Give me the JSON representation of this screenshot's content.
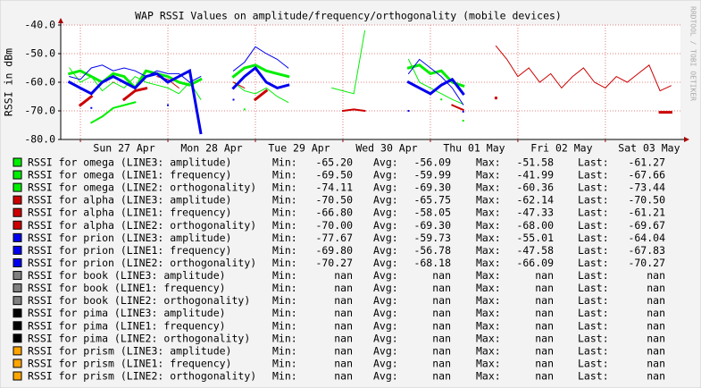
{
  "chart_data": {
    "type": "line",
    "title": "WAP RSSI Values on amplitude/frequency/orthogonality (mobile devices)",
    "y_label": "RSSI in dBm",
    "watermark": "RRDTOOL / TOBI OETIKER",
    "x": [
      -3,
      0,
      3,
      6,
      9,
      12,
      15,
      18,
      21,
      24,
      27,
      30,
      33,
      36,
      39,
      42,
      45,
      48,
      51,
      54,
      57,
      60,
      63,
      66,
      69,
      72,
      75,
      78,
      81,
      84,
      87,
      90,
      93,
      96,
      99,
      102,
      105,
      108,
      111,
      114,
      117,
      120,
      123,
      126,
      129,
      132,
      135,
      138,
      141,
      144,
      147,
      150,
      153,
      156,
      159,
      162
    ],
    "xlim": [
      -5.4,
      164.6
    ],
    "xticks": [
      {
        "value": 12,
        "label": "Sun 27 Apr"
      },
      {
        "value": 36,
        "label": "Mon 28 Apr"
      },
      {
        "value": 60,
        "label": "Tue 29 Apr"
      },
      {
        "value": 84,
        "label": "Wed 30 Apr"
      },
      {
        "value": 108,
        "label": "Thu 01 May"
      },
      {
        "value": 132,
        "label": "Fri 02 May"
      },
      {
        "value": 156,
        "label": "Sat 03 May"
      }
    ],
    "xgrid": [
      0,
      24,
      48,
      72,
      96,
      120,
      144
    ],
    "ylim": [
      -80,
      -40
    ],
    "yticks": [
      {
        "value": -40,
        "label": "-40.0"
      },
      {
        "value": -50,
        "label": "-50.0"
      },
      {
        "value": -60,
        "label": "-60.0"
      },
      {
        "value": -70,
        "label": "-70.0"
      },
      {
        "value": -80,
        "label": "-80.0"
      }
    ],
    "grid": true,
    "stat_labels": [
      "Min:",
      "Avg:",
      "Max:",
      "Last:"
    ],
    "series": [
      {
        "name": "RSSI for omega (LINE3: amplitude)",
        "color": "#00ee00",
        "width": 3,
        "stats": [
          "-65.20",
          "-56.09",
          "-51.58",
          "-61.27"
        ],
        "values": [
          -57,
          -56,
          -58,
          -60,
          -57,
          -58,
          -62,
          -56,
          -57,
          -58,
          -60,
          -61,
          -59,
          null,
          null,
          -58,
          -55,
          -54,
          -56,
          -57,
          -58,
          null,
          null,
          null,
          null,
          null,
          null,
          null,
          null,
          null,
          null,
          -55,
          -54,
          -57,
          -56,
          -60,
          -61.27,
          null,
          null,
          null,
          null,
          null,
          null,
          null,
          null,
          null,
          null,
          null,
          null,
          null,
          null,
          null,
          null,
          null,
          null,
          null
        ]
      },
      {
        "name": "RSSI for omega (LINE1: frequency)",
        "color": "#00ee00",
        "width": 1,
        "stats": [
          "-69.50",
          "-59.99",
          "-41.99",
          "-67.66"
        ],
        "values": [
          -55,
          -60,
          -58,
          -63,
          -60,
          -62,
          -58,
          -60,
          -61,
          -62,
          -64,
          -60,
          -66,
          null,
          null,
          -60,
          -63,
          -64,
          -62,
          -65,
          -67,
          null,
          null,
          null,
          -62,
          -63,
          -64,
          -41.99,
          null,
          null,
          null,
          -52,
          -60,
          -62,
          -64,
          -66,
          -67.66,
          null,
          null,
          null,
          null,
          null,
          null,
          null,
          null,
          null,
          null,
          null,
          null,
          null,
          null,
          null,
          null,
          null,
          null,
          null
        ]
      },
      {
        "name": "RSSI for omega (LINE2: orthogonality)",
        "color": "#00ee00",
        "width": 2,
        "stats": [
          "-74.11",
          "-69.30",
          "-60.36",
          "-73.44"
        ],
        "values": [
          null,
          null,
          -74.11,
          -72,
          -69,
          -68,
          -67,
          null,
          null,
          null,
          null,
          null,
          null,
          null,
          null,
          null,
          -69.5,
          null,
          null,
          null,
          null,
          null,
          null,
          null,
          null,
          null,
          null,
          null,
          null,
          null,
          null,
          null,
          null,
          null,
          -66,
          null,
          -73.44,
          null,
          null,
          null,
          null,
          null,
          null,
          null,
          null,
          null,
          null,
          null,
          null,
          null,
          null,
          null,
          null,
          null,
          null,
          null
        ]
      },
      {
        "name": "RSSI for alpha (LINE3: amplitude)",
        "color": "#cc0000",
        "width": 3,
        "stats": [
          "-70.50",
          "-65.75",
          "-62.14",
          "-70.50"
        ],
        "values": [
          null,
          -68,
          -65,
          null,
          null,
          -66,
          -63,
          -62.14,
          null,
          null,
          null,
          null,
          null,
          null,
          null,
          null,
          null,
          -66,
          -63,
          null,
          null,
          null,
          null,
          null,
          null,
          null,
          null,
          null,
          null,
          null,
          null,
          null,
          null,
          null,
          null,
          null,
          null,
          null,
          null,
          -65.5,
          null,
          null,
          null,
          null,
          null,
          null,
          null,
          null,
          null,
          null,
          null,
          null,
          null,
          null,
          -70.5,
          -70.5
        ]
      },
      {
        "name": "RSSI for alpha (LINE1: frequency)",
        "color": "#cc0000",
        "width": 1,
        "stats": [
          "-66.80",
          "-58.05",
          "-47.33",
          "-61.21"
        ],
        "values": [
          null,
          null,
          null,
          null,
          -60,
          null,
          null,
          null,
          -58,
          -59,
          -62,
          null,
          null,
          null,
          null,
          -60,
          -62,
          null,
          null,
          null,
          null,
          null,
          null,
          null,
          null,
          null,
          null,
          null,
          null,
          null,
          null,
          null,
          null,
          null,
          null,
          null,
          null,
          null,
          null,
          -47.33,
          -52,
          -58,
          -55,
          -60,
          -57,
          -62,
          -58,
          -55,
          -60,
          -62,
          -58,
          -60,
          -57,
          -54,
          -63,
          -61.21
        ]
      },
      {
        "name": "RSSI for alpha (LINE2: orthogonality)",
        "color": "#cc0000",
        "width": 2,
        "stats": [
          "-70.00",
          "-69.30",
          "-68.00",
          "-69.67"
        ],
        "values": [
          null,
          null,
          null,
          null,
          null,
          null,
          null,
          null,
          null,
          null,
          null,
          null,
          null,
          null,
          null,
          null,
          null,
          null,
          null,
          null,
          null,
          null,
          null,
          null,
          null,
          -70,
          -69.5,
          -70,
          null,
          null,
          null,
          null,
          null,
          null,
          null,
          -68,
          -69.67,
          null,
          null,
          null,
          null,
          null,
          null,
          null,
          null,
          null,
          null,
          null,
          null,
          null,
          null,
          null,
          null,
          null,
          null,
          null
        ]
      },
      {
        "name": "RSSI for prion (LINE3: amplitude)",
        "color": "#0000ee",
        "width": 3,
        "stats": [
          "-77.67",
          "-59.73",
          "-55.01",
          "-64.04"
        ],
        "values": [
          -60,
          -62,
          -64,
          -60,
          -58,
          -60,
          -62,
          -58,
          -57,
          -60,
          -58,
          -56,
          -77.67,
          null,
          null,
          -62,
          -58,
          -55.01,
          -60,
          -62,
          -61,
          null,
          null,
          null,
          null,
          null,
          null,
          null,
          null,
          null,
          null,
          -60,
          -62,
          -64,
          -61,
          -59,
          -64.04,
          null,
          null,
          null,
          null,
          null,
          null,
          null,
          null,
          null,
          null,
          null,
          null,
          null,
          null,
          null,
          null,
          null,
          null,
          null
        ]
      },
      {
        "name": "RSSI for prion (LINE1: frequency)",
        "color": "#0000ee",
        "width": 1,
        "stats": [
          "-69.80",
          "-56.78",
          "-47.58",
          "-67.83"
        ],
        "values": [
          -58,
          -59,
          -55,
          -54,
          -56,
          -55,
          -56,
          -58,
          -56,
          -57,
          -57,
          -60,
          -58,
          null,
          null,
          -56,
          -53,
          -47.58,
          -50,
          -52,
          -55,
          null,
          null,
          null,
          null,
          null,
          null,
          null,
          null,
          null,
          null,
          -57,
          -52,
          -55,
          -58,
          -62,
          -67.83,
          null,
          null,
          null,
          null,
          null,
          null,
          null,
          null,
          null,
          null,
          null,
          null,
          null,
          null,
          null,
          null,
          null,
          null,
          null
        ]
      },
      {
        "name": "RSSI for prion (LINE2: orthogonality)",
        "color": "#0000ee",
        "width": 2,
        "stats": [
          "-70.27",
          "-68.18",
          "-66.09",
          "-70.27"
        ],
        "values": [
          null,
          null,
          -69,
          null,
          null,
          null,
          null,
          null,
          null,
          -68,
          null,
          null,
          null,
          null,
          null,
          -66.09,
          null,
          null,
          null,
          null,
          null,
          null,
          null,
          null,
          null,
          null,
          null,
          null,
          null,
          null,
          null,
          -70,
          null,
          null,
          null,
          null,
          -70.27,
          null,
          null,
          null,
          null,
          null,
          null,
          null,
          null,
          null,
          null,
          null,
          null,
          null,
          null,
          null,
          null,
          null,
          null,
          null
        ]
      },
      {
        "name": "RSSI for book (LINE3: amplitude)",
        "color": "#808080",
        "stats": [
          "nan",
          "nan",
          "nan",
          "nan"
        ]
      },
      {
        "name": "RSSI for book (LINE1: frequency)",
        "color": "#808080",
        "stats": [
          "nan",
          "nan",
          "nan",
          "nan"
        ]
      },
      {
        "name": "RSSI for book (LINE2: orthogonality)",
        "color": "#808080",
        "stats": [
          "nan",
          "nan",
          "nan",
          "nan"
        ]
      },
      {
        "name": "RSSI for pima (LINE3: amplitude)",
        "color": "#000000",
        "stats": [
          "nan",
          "nan",
          "nan",
          "nan"
        ]
      },
      {
        "name": "RSSI for pima (LINE1: frequency)",
        "color": "#000000",
        "stats": [
          "nan",
          "nan",
          "nan",
          "nan"
        ]
      },
      {
        "name": "RSSI for pima (LINE2: orthogonality)",
        "color": "#000000",
        "stats": [
          "nan",
          "nan",
          "nan",
          "nan"
        ]
      },
      {
        "name": "RSSI for prism (LINE3: amplitude)",
        "color": "#ffa500",
        "stats": [
          "nan",
          "nan",
          "nan",
          "nan"
        ]
      },
      {
        "name": "RSSI for prism (LINE1: frequency)",
        "color": "#ffa500",
        "stats": [
          "nan",
          "nan",
          "nan",
          "nan"
        ]
      },
      {
        "name": "RSSI for prism (LINE2: orthogonality)",
        "color": "#ffa500",
        "stats": [
          "nan",
          "nan",
          "nan",
          "nan"
        ]
      }
    ]
  }
}
